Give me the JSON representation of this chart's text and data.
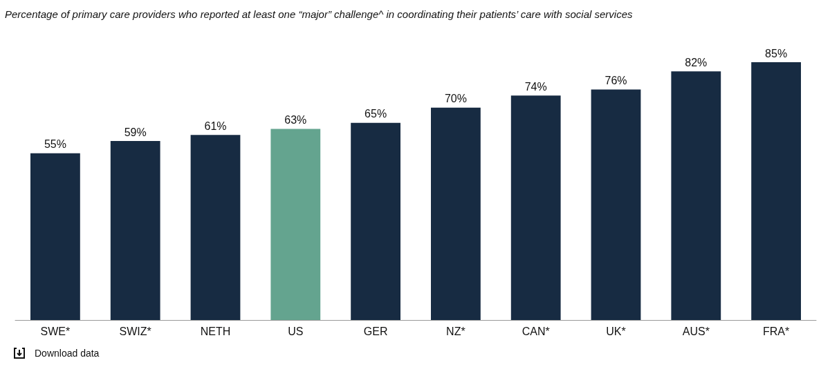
{
  "chart_data": {
    "type": "bar",
    "title": "Percentage of primary care providers who reported at least one “major” challenge^ in coordinating their patients’ care with social services",
    "categories": [
      "SWE*",
      "SWIZ*",
      "NETH",
      "US",
      "GER",
      "NZ*",
      "CAN*",
      "UK*",
      "AUS*",
      "FRA*"
    ],
    "values": [
      55,
      59,
      61,
      63,
      65,
      70,
      74,
      76,
      82,
      85
    ],
    "colors": [
      "#172b42",
      "#172b42",
      "#172b42",
      "#64a48f",
      "#172b42",
      "#172b42",
      "#172b42",
      "#172b42",
      "#172b42",
      "#172b42"
    ],
    "value_labels": [
      "55%",
      "59%",
      "61%",
      "63%",
      "65%",
      "70%",
      "74%",
      "76%",
      "82%",
      "85%"
    ],
    "annotations": [
      "Download data"
    ]
  }
}
